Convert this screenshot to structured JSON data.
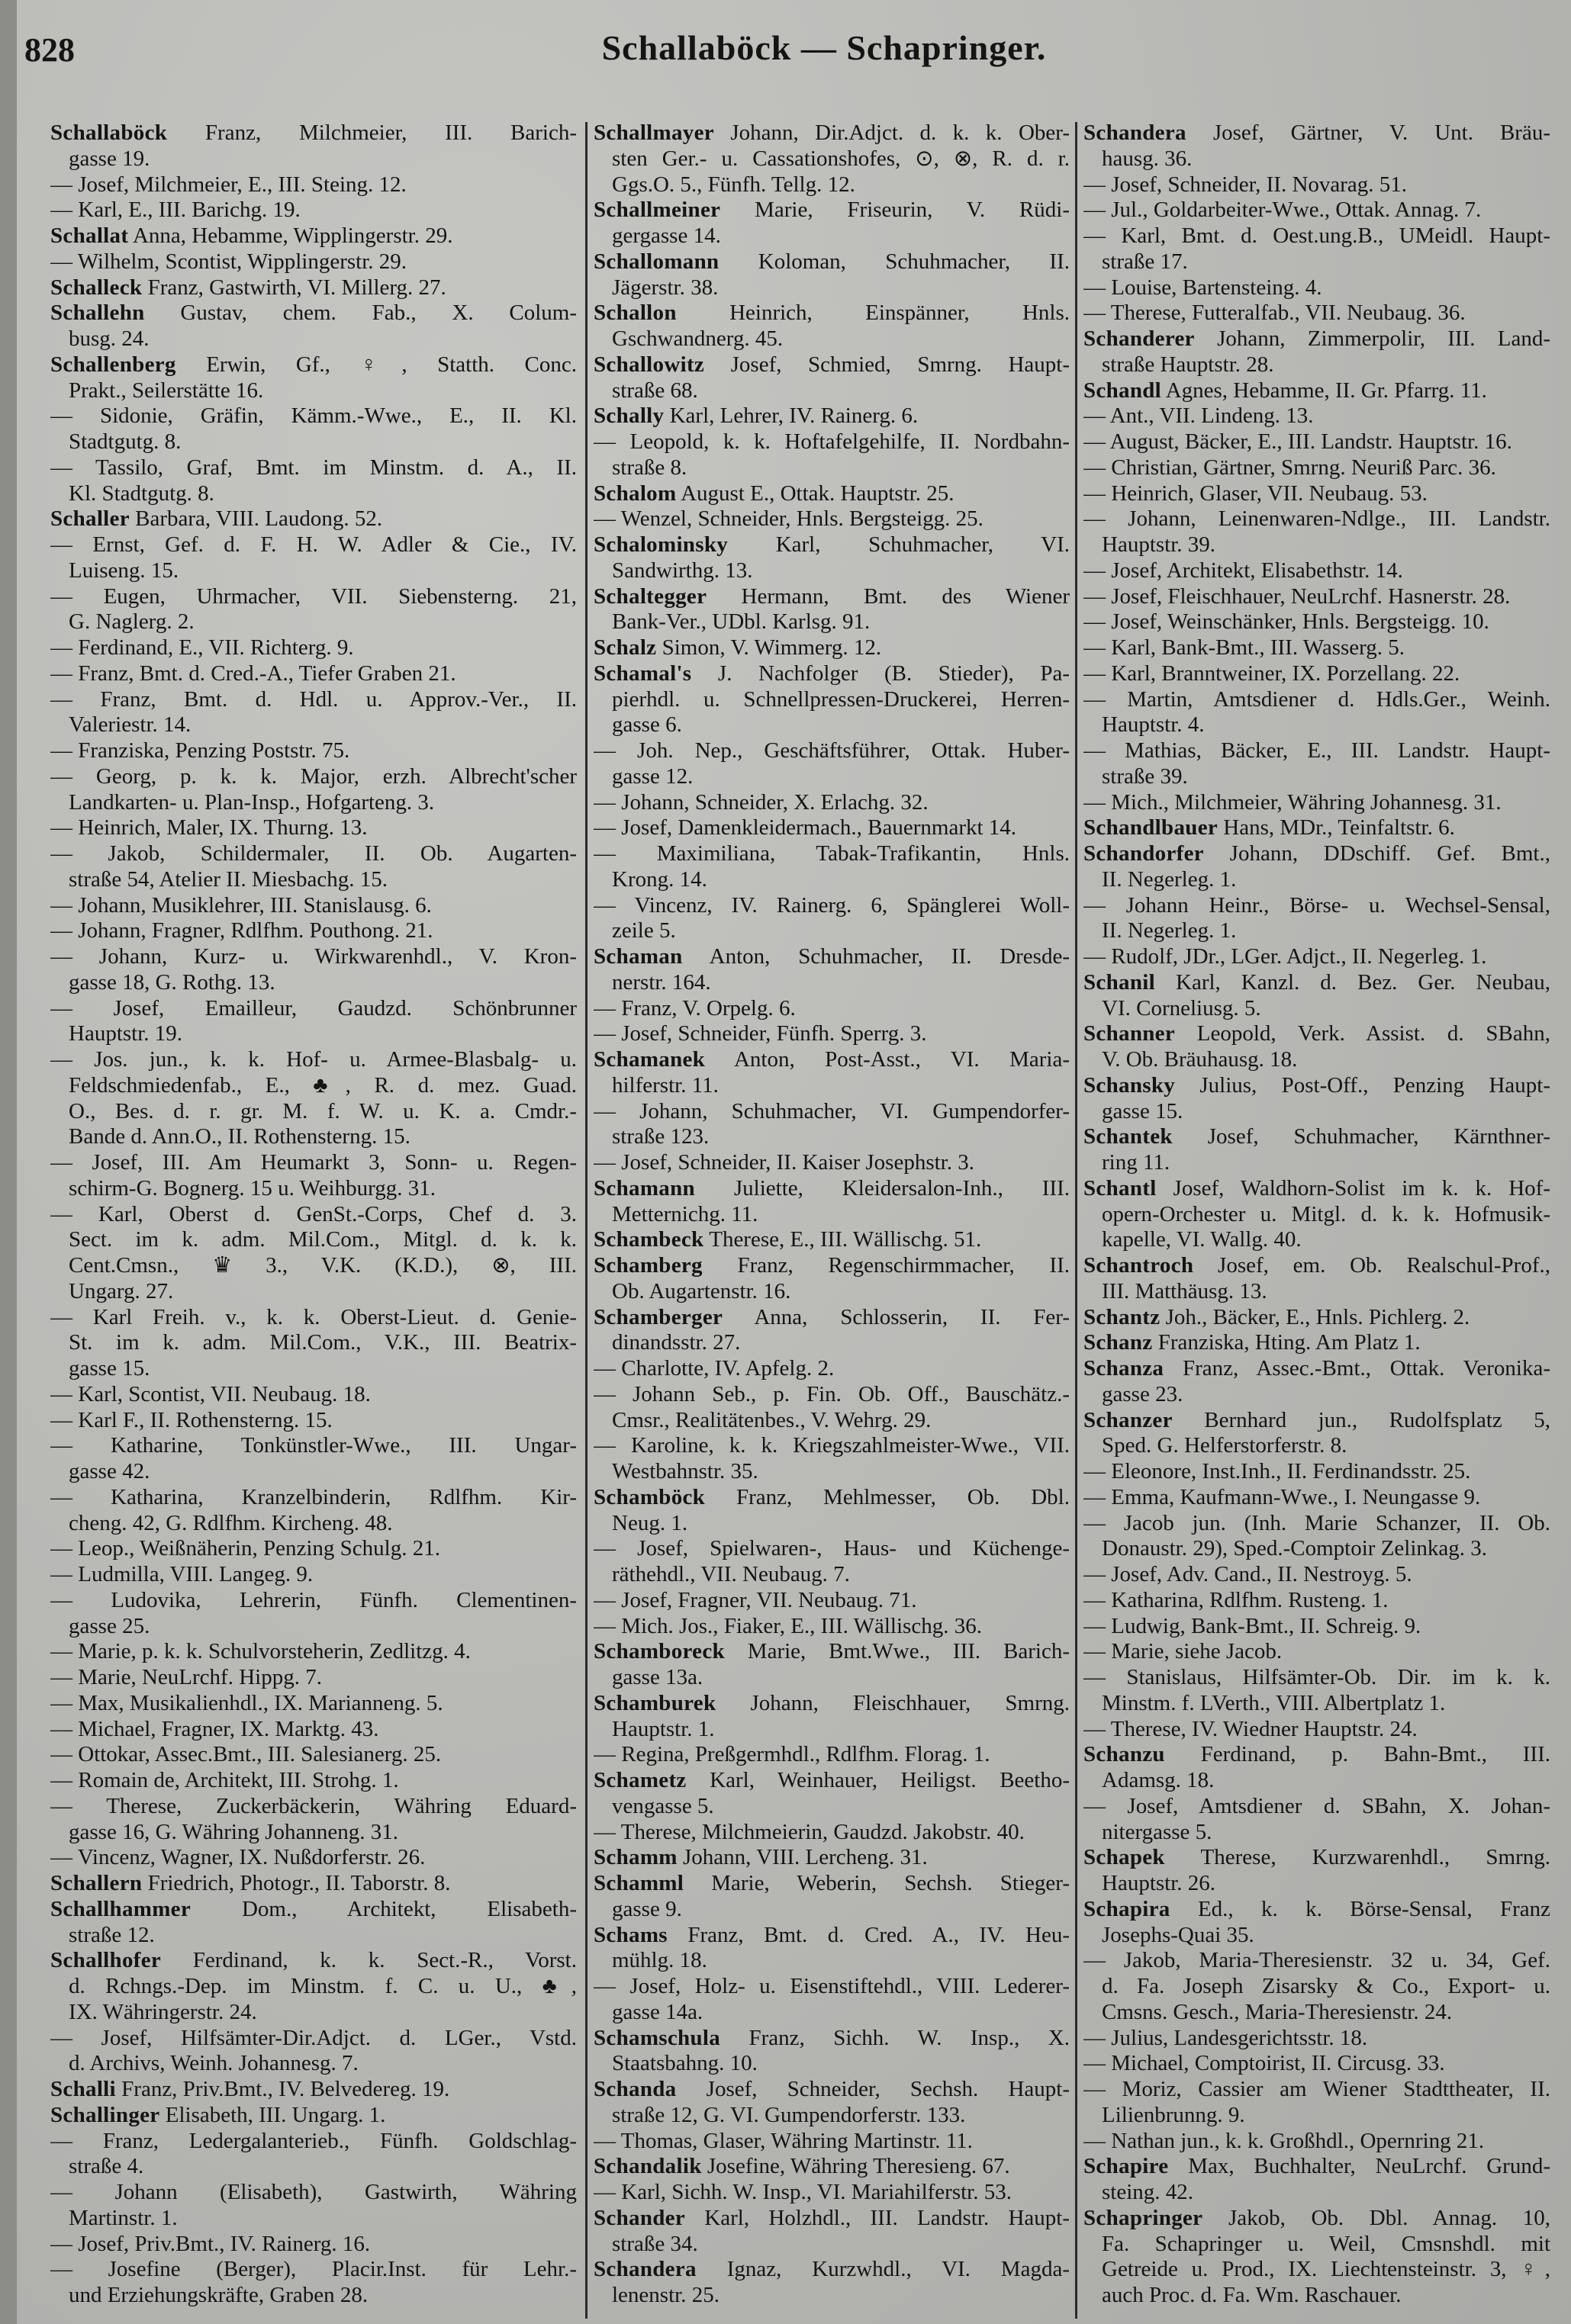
{
  "header": {
    "page_number": "828",
    "running_head": "Schallaböck — Schapringer."
  },
  "columns": [
    [
      {
        "n": "Schallaböck",
        "t": " Franz, Milchmeier, III. Barich-"
      },
      {
        "t": "gasse 19."
      },
      {
        "t": "— Josef, Milchmeier, E., III. Steing. 12."
      },
      {
        "t": "— Karl, E., III. Barichg. 19."
      },
      {
        "n": "Schallat",
        "t": " Anna, Hebamme, Wipplingerstr. 29."
      },
      {
        "t": "— Wilhelm, Scontist, Wipplingerstr. 29."
      },
      {
        "n": "Schalleck",
        "t": " Franz, Gastwirth, VI. Millerg. 27."
      },
      {
        "n": "Schallehn",
        "t": " Gustav, chem. Fab., X. Colum-"
      },
      {
        "t": "busg. 24."
      },
      {
        "n": "Schallenberg",
        "t": " Erwin, Gf., ♀, Statth. Conc."
      },
      {
        "t": "Prakt., Seilerstätte 16."
      },
      {
        "t": "— Sidonie, Gräfin, Kämm.-Wwe., E., II. Kl."
      },
      {
        "t": "Stadtgutg. 8."
      },
      {
        "t": "— Tassilo, Graf, Bmt. im Minstm. d. A., II."
      },
      {
        "t": "Kl. Stadtgutg. 8."
      },
      {
        "n": "Schaller",
        "t": " Barbara, VIII. Laudong. 52."
      },
      {
        "t": "— Ernst, Gef. d. F. H. W. Adler & Cie., IV."
      },
      {
        "t": "Luiseng. 15."
      },
      {
        "t": "— Eugen, Uhrmacher, VII. Siebensterng. 21,"
      },
      {
        "t": "G. Naglerg. 2."
      },
      {
        "t": "— Ferdinand, E., VII. Richterg. 9."
      },
      {
        "t": "— Franz, Bmt. d. Cred.-A., Tiefer Graben 21."
      },
      {
        "t": "— Franz, Bmt. d. Hdl. u. Approv.-Ver., II."
      },
      {
        "t": "Valeriestr. 14."
      },
      {
        "t": "— Franziska, Penzing Poststr. 75."
      },
      {
        "t": "— Georg, p. k. k. Major, erzh. Albrecht'scher"
      },
      {
        "t": "Landkarten- u. Plan-Insp., Hofgarteng. 3."
      },
      {
        "t": "— Heinrich, Maler, IX. Thurng. 13."
      },
      {
        "t": "— Jakob, Schildermaler, II. Ob. Augarten-"
      },
      {
        "t": "straße 54, Atelier II. Miesbachg. 15."
      },
      {
        "t": "— Johann, Musiklehrer, III. Stanislausg. 6."
      },
      {
        "t": "— Johann, Fragner, Rdlfhm. Pouthong. 21."
      },
      {
        "t": "— Johann, Kurz- u. Wirkwarenhdl., V. Kron-"
      },
      {
        "t": "gasse 18, G. Rothg. 13."
      },
      {
        "t": "— Josef, Emailleur, Gaudzd. Schönbrunner"
      },
      {
        "t": "Hauptstr. 19."
      },
      {
        "t": "— Jos. jun., k. k. Hof- u. Armee-Blasbalg- u."
      },
      {
        "t": "Feldschmiedenfab., E., ♣, R. d. mez. Guad."
      },
      {
        "t": "O., Bes. d. r. gr. M. f. W. u. K. a. Cmdr.-"
      },
      {
        "t": "Bande d. Ann.O., II. Rothensterng. 15."
      },
      {
        "t": "— Josef, III. Am Heumarkt 3, Sonn- u. Regen-"
      },
      {
        "t": "schirm-G. Bognerg. 15 u. Weihburgg. 31."
      },
      {
        "t": "— Karl, Oberst d. GenSt.-Corps, Chef d. 3."
      },
      {
        "t": "Sect. im k. adm. Mil.Com., Mitgl. d. k. k."
      },
      {
        "t": "Cent.Cmsn., ♛ 3., V.K. (K.D.), ⊗, III."
      },
      {
        "t": "Ungarg. 27."
      },
      {
        "t": "— Karl Freih. v., k. k. Oberst-Lieut. d. Genie-"
      },
      {
        "t": "St. im k. adm. Mil.Com., V.K., III. Beatrix-"
      },
      {
        "t": "gasse 15."
      },
      {
        "t": "— Karl, Scontist, VII. Neubaug. 18."
      },
      {
        "t": "— Karl F., II. Rothensterng. 15."
      },
      {
        "t": "— Katharine, Tonkünstler-Wwe., III. Ungar-"
      },
      {
        "t": "gasse 42."
      },
      {
        "t": "— Katharina, Kranzelbinderin, Rdlfhm. Kir-"
      },
      {
        "t": "cheng. 42, G. Rdlfhm. Kircheng. 48."
      },
      {
        "t": "— Leop., Weißnäherin, Penzing Schulg. 21."
      },
      {
        "t": "— Ludmilla, VIII. Langeg. 9."
      },
      {
        "t": "— Ludovika, Lehrerin, Fünfh. Clementinen-"
      },
      {
        "t": "gasse 25."
      },
      {
        "t": "— Marie, p. k. k. Schulvorsteherin, Zedlitzg. 4."
      },
      {
        "t": "— Marie, NeuLrchf. Hippg. 7."
      },
      {
        "t": "— Max, Musikalienhdl., IX. Marianneng. 5."
      },
      {
        "t": "— Michael, Fragner, IX. Marktg. 43."
      },
      {
        "t": "— Ottokar, Assec.Bmt., III. Salesianerg. 25."
      },
      {
        "t": "— Romain de, Architekt, III. Strohg. 1."
      },
      {
        "t": "— Therese, Zuckerbäckerin, Währing Eduard-"
      },
      {
        "t": "gasse 16, G. Währing Johanneng. 31."
      },
      {
        "t": "— Vincenz, Wagner, IX. Nußdorferstr. 26."
      },
      {
        "n": "Schallern",
        "t": " Friedrich, Photogr., II. Taborstr. 8."
      },
      {
        "n": "Schallhammer",
        "t": " Dom., Architekt, Elisabeth-"
      },
      {
        "t": "straße 12."
      },
      {
        "n": "Schallhofer",
        "t": " Ferdinand, k. k. Sect.-R., Vorst."
      },
      {
        "t": "d. Rchngs.-Dep. im Minstm. f. C. u. U., ♣,"
      },
      {
        "t": "IX. Währingerstr. 24."
      },
      {
        "t": "— Josef, Hilfsämter-Dir.Adjct. d. LGer., Vstd."
      },
      {
        "t": "d. Archivs, Weinh. Johannesg. 7."
      },
      {
        "n": "Schalli",
        "t": " Franz, Priv.Bmt., IV. Belvedereg. 19."
      },
      {
        "n": "Schallinger",
        "t": " Elisabeth, III. Ungarg. 1."
      },
      {
        "t": "— Franz, Ledergalanterieb., Fünfh. Goldschlag-"
      },
      {
        "t": "straße 4."
      },
      {
        "t": "— Johann (Elisabeth), Gastwirth, Währing"
      },
      {
        "t": "Martinstr. 1."
      },
      {
        "t": "— Josef, Priv.Bmt., IV. Rainerg. 16."
      },
      {
        "t": "— Josefine (Berger), Placir.Inst. für Lehr.-"
      },
      {
        "t": "und Erziehungskräfte, Graben 28."
      }
    ],
    [
      {
        "n": "Schallmayer",
        "t": " Johann, Dir.Adjct. d. k. k. Ober-"
      },
      {
        "t": "sten Ger.- u. Cassationshofes, ⊙, ⊗, R. d. r."
      },
      {
        "t": "Ggs.O. 5., Fünfh. Tellg. 12."
      },
      {
        "n": "Schallmeiner",
        "t": " Marie, Friseurin, V. Rüdi-"
      },
      {
        "t": "gergasse 14."
      },
      {
        "n": "Schallomann",
        "t": " Koloman, Schuhmacher, II."
      },
      {
        "t": "Jägerstr. 38."
      },
      {
        "n": "Schallon",
        "t": " Heinrich, Einspänner, Hnls."
      },
      {
        "t": "Gschwandnerg. 45."
      },
      {
        "n": "Schallowitz",
        "t": " Josef, Schmied, Smrng. Haupt-"
      },
      {
        "t": "straße 68."
      },
      {
        "n": "Schally",
        "t": " Karl, Lehrer, IV. Rainerg. 6."
      },
      {
        "t": "— Leopold, k. k. Hoftafelgehilfe, II. Nordbahn-"
      },
      {
        "t": "straße 8."
      },
      {
        "n": "Schalom",
        "t": " August E., Ottak. Hauptstr. 25."
      },
      {
        "t": "— Wenzel, Schneider, Hnls. Bergsteigg. 25."
      },
      {
        "n": "Schalominsky",
        "t": " Karl, Schuhmacher, VI."
      },
      {
        "t": "Sandwirthg. 13."
      },
      {
        "n": "Schaltegger",
        "t": " Hermann, Bmt. des Wiener"
      },
      {
        "t": "Bank-Ver., UDbl. Karlsg. 91."
      },
      {
        "n": "Schalz",
        "t": " Simon, V. Wimmerg. 12."
      },
      {
        "n": "Schamal's",
        "t": " J. Nachfolger (B. Stieder), Pa-"
      },
      {
        "t": "pierhdl. u. Schnellpressen-Druckerei, Herren-"
      },
      {
        "t": "gasse 6."
      },
      {
        "t": "— Joh. Nep., Geschäftsführer, Ottak. Huber-"
      },
      {
        "t": "gasse 12."
      },
      {
        "t": "— Johann, Schneider, X. Erlachg. 32."
      },
      {
        "t": "— Josef, Damenkleidermach., Bauernmarkt 14."
      },
      {
        "t": "— Maximiliana, Tabak-Trafikantin, Hnls."
      },
      {
        "t": "Krong. 14."
      },
      {
        "t": "— Vincenz, IV. Rainerg. 6, Spänglerei Woll-"
      },
      {
        "t": "zeile 5."
      },
      {
        "n": "Schaman",
        "t": " Anton, Schuhmacher, II. Dresde-"
      },
      {
        "t": "nerstr. 164."
      },
      {
        "t": "— Franz, V. Orpelg. 6."
      },
      {
        "t": "— Josef, Schneider, Fünfh. Sperrg. 3."
      },
      {
        "n": "Schamanek",
        "t": " Anton, Post-Asst., VI. Maria-"
      },
      {
        "t": "hilferstr. 11."
      },
      {
        "t": "— Johann, Schuhmacher, VI. Gumpendorfer-"
      },
      {
        "t": "straße 123."
      },
      {
        "t": "— Josef, Schneider, II. Kaiser Josephstr. 3."
      },
      {
        "n": "Schamann",
        "t": " Juliette, Kleidersalon-Inh., III."
      },
      {
        "t": "Metternichg. 11."
      },
      {
        "n": "Schambeck",
        "t": " Therese, E., III. Wällischg. 51."
      },
      {
        "n": "Schamberg",
        "t": " Franz, Regenschirmmacher, II."
      },
      {
        "t": "Ob. Augartenstr. 16."
      },
      {
        "n": "Schamberger",
        "t": " Anna, Schlosserin, II. Fer-"
      },
      {
        "t": "dinandsstr. 27."
      },
      {
        "t": "— Charlotte, IV. Apfelg. 2."
      },
      {
        "t": "— Johann Seb., p. Fin. Ob. Off., Bauschätz.-"
      },
      {
        "t": "Cmsr., Realitätenbes., V. Wehrg. 29."
      },
      {
        "t": "— Karoline, k. k. Kriegszahlmeister-Wwe., VII."
      },
      {
        "t": "Westbahnstr. 35."
      },
      {
        "n": "Schamböck",
        "t": " Franz, Mehlmesser, Ob. Dbl."
      },
      {
        "t": "Neug. 1."
      },
      {
        "t": "— Josef, Spielwaren-, Haus- und Küchenge-"
      },
      {
        "t": "räthehdl., VII. Neubaug. 7."
      },
      {
        "t": "— Josef, Fragner, VII. Neubaug. 71."
      },
      {
        "t": "— Mich. Jos., Fiaker, E., III. Wällischg. 36."
      },
      {
        "n": "Schamboreck",
        "t": " Marie, Bmt.Wwe., III. Barich-"
      },
      {
        "t": "gasse 13a."
      },
      {
        "n": "Schamburek",
        "t": " Johann, Fleischhauer, Smrng."
      },
      {
        "t": "Hauptstr. 1."
      },
      {
        "t": "— Regina, Preßgermhdl., Rdlfhm. Florag. 1."
      },
      {
        "n": "Schametz",
        "t": " Karl, Weinhauer, Heiligst. Beetho-"
      },
      {
        "t": "vengasse 5."
      },
      {
        "t": "— Therese, Milchmeierin, Gaudzd. Jakobstr. 40."
      },
      {
        "n": "Schamm",
        "t": " Johann, VIII. Lercheng. 31."
      },
      {
        "n": "Schamml",
        "t": " Marie, Weberin, Sechsh. Stieger-"
      },
      {
        "t": "gasse 9."
      },
      {
        "n": "Schams",
        "t": " Franz, Bmt. d. Cred. A., IV. Heu-"
      },
      {
        "t": "mühlg. 18."
      },
      {
        "t": "— Josef, Holz- u. Eisenstiftehdl., VIII. Lederer-"
      },
      {
        "t": "gasse 14a."
      },
      {
        "n": "Schamschula",
        "t": " Franz, Sichh. W. Insp., X."
      },
      {
        "t": "Staatsbahng. 10."
      },
      {
        "n": "Schanda",
        "t": " Josef, Schneider, Sechsh. Haupt-"
      },
      {
        "t": "straße 12, G. VI. Gumpendorferstr. 133."
      },
      {
        "t": "— Thomas, Glaser, Währing Martinstr. 11."
      },
      {
        "n": "Schandalik",
        "t": " Josefine, Währing Theresieng. 67."
      },
      {
        "t": "— Karl, Sichh. W. Insp., VI. Mariahilferstr. 53."
      },
      {
        "n": "Schander",
        "t": " Karl, Holzhdl., III. Landstr. Haupt-"
      },
      {
        "t": "straße 34."
      },
      {
        "n": "Schandera",
        "t": " Ignaz, Kurzwhdl., VI. Magda-"
      },
      {
        "t": "lenenstr. 25."
      }
    ],
    [
      {
        "n": "Schandera",
        "t": " Josef, Gärtner, V. Unt. Bräu-"
      },
      {
        "t": "hausg. 36."
      },
      {
        "t": "— Josef, Schneider, II. Novarag. 51."
      },
      {
        "t": "— Jul., Goldarbeiter-Wwe., Ottak. Annag. 7."
      },
      {
        "t": "— Karl, Bmt. d. Oest.ung.B., UMeidl. Haupt-"
      },
      {
        "t": "straße 17."
      },
      {
        "t": "— Louise, Bartensteing. 4."
      },
      {
        "t": "— Therese, Futteralfab., VII. Neubaug. 36."
      },
      {
        "n": "Schanderer",
        "t": " Johann, Zimmerpolir, III. Land-"
      },
      {
        "t": "straße Hauptstr. 28."
      },
      {
        "n": "Schandl",
        "t": " Agnes, Hebamme, II. Gr. Pfarrg. 11."
      },
      {
        "t": "— Ant., VII. Lindeng. 13."
      },
      {
        "t": "— August, Bäcker, E., III. Landstr. Hauptstr. 16."
      },
      {
        "t": "— Christian, Gärtner, Smrng. Neuriß Parc. 36."
      },
      {
        "t": "— Heinrich, Glaser, VII. Neubaug. 53."
      },
      {
        "t": "— Johann, Leinenwaren-Ndlge., III. Landstr."
      },
      {
        "t": "Hauptstr. 39."
      },
      {
        "t": "— Josef, Architekt, Elisabethstr. 14."
      },
      {
        "t": "— Josef, Fleischhauer, NeuLrchf. Hasnerstr. 28."
      },
      {
        "t": "— Josef, Weinschänker, Hnls. Bergsteigg. 10."
      },
      {
        "t": "— Karl, Bank-Bmt., III. Wasserg. 5."
      },
      {
        "t": "— Karl, Branntweiner, IX. Porzellang. 22."
      },
      {
        "t": "— Martin, Amtsdiener d. Hdls.Ger., Weinh."
      },
      {
        "t": "Hauptstr. 4."
      },
      {
        "t": "— Mathias, Bäcker, E., III. Landstr. Haupt-"
      },
      {
        "t": "straße 39."
      },
      {
        "t": "— Mich., Milchmeier, Währing Johannesg. 31."
      },
      {
        "n": "Schandlbauer",
        "t": " Hans, MDr., Teinfaltstr. 6."
      },
      {
        "n": "Schandorfer",
        "t": " Johann, DDschiff. Gef. Bmt.,"
      },
      {
        "t": "II. Negerleg. 1."
      },
      {
        "t": "— Johann Heinr., Börse- u. Wechsel-Sensal,"
      },
      {
        "t": "II. Negerleg. 1."
      },
      {
        "t": "— Rudolf, JDr., LGer. Adjct., II. Negerleg. 1."
      },
      {
        "n": "Schanil",
        "t": " Karl, Kanzl. d. Bez. Ger. Neubau,"
      },
      {
        "t": "VI. Corneliusg. 5."
      },
      {
        "n": "Schanner",
        "t": " Leopold, Verk. Assist. d. SBahn,"
      },
      {
        "t": "V. Ob. Bräuhausg. 18."
      },
      {
        "n": "Schansky",
        "t": " Julius, Post-Off., Penzing Haupt-"
      },
      {
        "t": "gasse 15."
      },
      {
        "n": "Schantek",
        "t": " Josef, Schuhmacher, Kärnthner-"
      },
      {
        "t": "ring 11."
      },
      {
        "n": "Schantl",
        "t": " Josef, Waldhorn-Solist im k. k. Hof-"
      },
      {
        "t": "opern-Orchester u. Mitgl. d. k. k. Hofmusik-"
      },
      {
        "t": "kapelle, VI. Wallg. 40."
      },
      {
        "n": "Schantroch",
        "t": " Josef, em. Ob. Realschul-Prof.,"
      },
      {
        "t": "III. Matthäusg. 13."
      },
      {
        "n": "Schantz",
        "t": " Joh., Bäcker, E., Hnls. Pichlerg. 2."
      },
      {
        "n": "Schanz",
        "t": " Franziska, Hting. Am Platz 1."
      },
      {
        "n": "Schanza",
        "t": " Franz, Assec.-Bmt., Ottak. Veronika-"
      },
      {
        "t": "gasse 23."
      },
      {
        "n": "Schanzer",
        "t": " Bernhard jun., Rudolfsplatz 5,"
      },
      {
        "t": "Sped. G. Helferstorferstr. 8."
      },
      {
        "t": "— Eleonore, Inst.Inh., II. Ferdinandsstr. 25."
      },
      {
        "t": "— Emma, Kaufmann-Wwe., I. Neungasse 9."
      },
      {
        "t": "— Jacob jun. (Inh. Marie Schanzer, II. Ob."
      },
      {
        "t": "Donaustr. 29), Sped.-Comptoir Zelinkag. 3."
      },
      {
        "t": "— Josef, Adv. Cand., II. Nestroyg. 5."
      },
      {
        "t": "— Katharina, Rdlfhm. Rusteng. 1."
      },
      {
        "t": "— Ludwig, Bank-Bmt., II. Schreig. 9."
      },
      {
        "t": "— Marie, siehe Jacob."
      },
      {
        "t": "— Stanislaus, Hilfsämter-Ob. Dir. im k. k."
      },
      {
        "t": "Minstm. f. LVerth., VIII. Albertplatz 1."
      },
      {
        "t": "— Therese, IV. Wiedner Hauptstr. 24."
      },
      {
        "n": "Schanzu",
        "t": " Ferdinand, p. Bahn-Bmt., III."
      },
      {
        "t": "Adamsg. 18."
      },
      {
        "t": "— Josef, Amtsdiener d. SBahn, X. Johan-"
      },
      {
        "t": "nitergasse 5."
      },
      {
        "n": "Schapek",
        "t": " Therese, Kurzwarenhdl., Smrng."
      },
      {
        "t": "Hauptstr. 26."
      },
      {
        "n": "Schapira",
        "t": " Ed., k. k. Börse-Sensal, Franz"
      },
      {
        "t": "Josephs-Quai 35."
      },
      {
        "t": "— Jakob, Maria-Theresienstr. 32 u. 34, Gef."
      },
      {
        "t": "d. Fa. Joseph Zisarsky & Co., Export- u."
      },
      {
        "t": "Cmsns. Gesch., Maria-Theresienstr. 24."
      },
      {
        "t": "— Julius, Landesgerichtsstr. 18."
      },
      {
        "t": "— Michael, Comptoirist, II. Circusg. 33."
      },
      {
        "t": "— Moriz, Cassier am Wiener Stadttheater, II."
      },
      {
        "t": "Lilienbrunng. 9."
      },
      {
        "t": "— Nathan jun., k. k. Großhdl., Opernring 21."
      },
      {
        "n": "Schapire",
        "t": " Max, Buchhalter, NeuLrchf. Grund-"
      },
      {
        "t": "steing. 42."
      },
      {
        "n": "Schapringer",
        "t": " Jakob, Ob. Dbl. Annag. 10,"
      },
      {
        "t": "Fa. Schapringer u. Weil, Cmsnshdl. mit"
      },
      {
        "t": "Getreide u. Prod., IX. Liechtensteinstr. 3, ♀,"
      },
      {
        "t": "auch Proc. d. Fa. Wm. Raschauer."
      }
    ]
  ]
}
